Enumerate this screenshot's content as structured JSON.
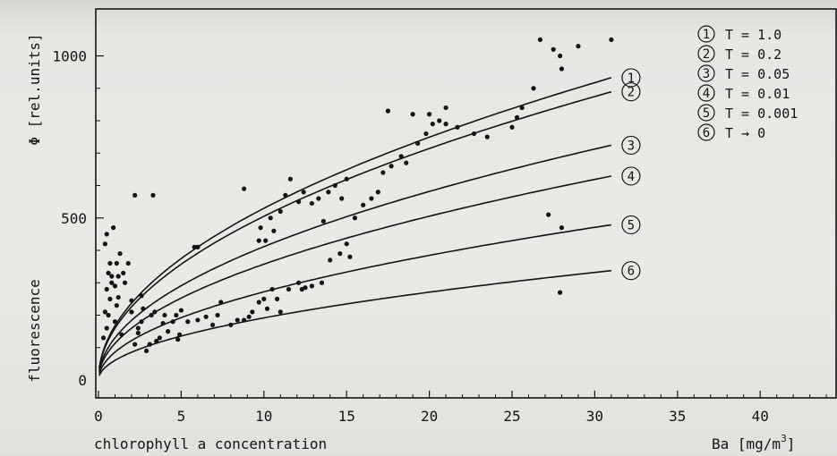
{
  "chart_data": {
    "type": "scatter",
    "title": "",
    "ylabel": "fluorescence",
    "ylabel_quantity": "Φ [rel.units]",
    "xlabel": "chlorophyll  a  concentration",
    "xlabel_unit": "Ba  [mg/m",
    "xlabel_unit_exp": "3",
    "xlabel_unit_close": "]",
    "xlim": [
      0,
      44
    ],
    "ylim": [
      0,
      1080
    ],
    "x_ticks": [
      0,
      5,
      10,
      15,
      20,
      25,
      30,
      35,
      40
    ],
    "y_ticks": [
      0,
      500,
      1000
    ],
    "grid": false,
    "legend_position": "top-right",
    "legend": [
      {
        "num": "1",
        "label": "T = 1.0"
      },
      {
        "num": "2",
        "label": "T = 0.2"
      },
      {
        "num": "3",
        "label": "T = 0.05"
      },
      {
        "num": "4",
        "label": "T = 0.01"
      },
      {
        "num": "5",
        "label": "T = 0.001"
      },
      {
        "num": "6",
        "label": "T → 0"
      }
    ],
    "curves": [
      {
        "num": "1",
        "label": "T = 1.0",
        "coef": 167.5
      },
      {
        "num": "2",
        "label": "T = 0.2",
        "coef": 159.7
      },
      {
        "num": "3",
        "label": "T = 0.05",
        "coef": 130.1
      },
      {
        "num": "4",
        "label": "T = 0.01",
        "coef": 113.0
      },
      {
        "num": "5",
        "label": "T = 0.001",
        "coef": 86.0
      },
      {
        "num": "6",
        "label": "T → 0",
        "coef": 60.6
      }
    ],
    "curve_exponent": 0.5,
    "curve_x_range": [
      0.05,
      31
    ],
    "points": [
      [
        0.3,
        130
      ],
      [
        0.5,
        160
      ],
      [
        0.6,
        200
      ],
      [
        0.4,
        210
      ],
      [
        0.7,
        250
      ],
      [
        0.5,
        280
      ],
      [
        0.8,
        300
      ],
      [
        0.6,
        330
      ],
      [
        0.4,
        420
      ],
      [
        0.5,
        450
      ],
      [
        0.9,
        470
      ],
      [
        0.7,
        360
      ],
      [
        0.8,
        320
      ],
      [
        1.0,
        180
      ],
      [
        1.1,
        230
      ],
      [
        1.2,
        255
      ],
      [
        1.0,
        290
      ],
      [
        1.2,
        320
      ],
      [
        1.1,
        360
      ],
      [
        1.3,
        390
      ],
      [
        1.5,
        330
      ],
      [
        1.6,
        300
      ],
      [
        1.4,
        140
      ],
      [
        1.8,
        360
      ],
      [
        2.0,
        245
      ],
      [
        2.2,
        110
      ],
      [
        2.4,
        145
      ],
      [
        2.4,
        160
      ],
      [
        2.6,
        180
      ],
      [
        2.6,
        260
      ],
      [
        2.7,
        220
      ],
      [
        2.9,
        90
      ],
      [
        3.1,
        110
      ],
      [
        3.2,
        200
      ],
      [
        3.4,
        210
      ],
      [
        3.5,
        120
      ],
      [
        3.7,
        130
      ],
      [
        3.9,
        175
      ],
      [
        4.0,
        200
      ],
      [
        4.2,
        150
      ],
      [
        4.5,
        180
      ],
      [
        4.7,
        200
      ],
      [
        4.8,
        125
      ],
      [
        4.9,
        140
      ],
      [
        5.0,
        215
      ],
      [
        5.4,
        180
      ],
      [
        5.8,
        410
      ],
      [
        6.0,
        185
      ],
      [
        6.5,
        195
      ],
      [
        6.9,
        170
      ],
      [
        7.2,
        200
      ],
      [
        7.4,
        240
      ],
      [
        8.0,
        170
      ],
      [
        8.4,
        185
      ],
      [
        8.8,
        185
      ],
      [
        9.1,
        195
      ],
      [
        9.3,
        210
      ],
      [
        9.7,
        240
      ],
      [
        10.0,
        250
      ],
      [
        10.2,
        220
      ],
      [
        10.5,
        280
      ],
      [
        10.8,
        250
      ],
      [
        11.0,
        210
      ],
      [
        11.5,
        280
      ],
      [
        12.1,
        300
      ],
      [
        12.3,
        280
      ],
      [
        12.5,
        285
      ],
      [
        12.9,
        290
      ],
      [
        13.5,
        300
      ],
      [
        14.0,
        370
      ],
      [
        14.6,
        390
      ],
      [
        15.2,
        380
      ],
      [
        15.0,
        420
      ],
      [
        8.8,
        590
      ],
      [
        9.7,
        430
      ],
      [
        9.8,
        470
      ],
      [
        10.1,
        430
      ],
      [
        10.4,
        500
      ],
      [
        10.6,
        460
      ],
      [
        11.0,
        520
      ],
      [
        11.3,
        570
      ],
      [
        11.6,
        620
      ],
      [
        12.1,
        550
      ],
      [
        12.4,
        580
      ],
      [
        12.9,
        545
      ],
      [
        13.3,
        560
      ],
      [
        13.6,
        490
      ],
      [
        13.9,
        580
      ],
      [
        14.3,
        600
      ],
      [
        14.7,
        560
      ],
      [
        15.0,
        620
      ],
      [
        15.5,
        500
      ],
      [
        16.0,
        540
      ],
      [
        16.5,
        560
      ],
      [
        16.9,
        580
      ],
      [
        17.2,
        640
      ],
      [
        17.7,
        660
      ],
      [
        18.3,
        690
      ],
      [
        18.6,
        670
      ],
      [
        19.3,
        730
      ],
      [
        19.8,
        760
      ],
      [
        20.2,
        790
      ],
      [
        20.6,
        800
      ],
      [
        21.0,
        790
      ],
      [
        21.7,
        780
      ],
      [
        22.7,
        760
      ],
      [
        23.5,
        750
      ],
      [
        25.0,
        780
      ],
      [
        25.3,
        810
      ],
      [
        25.6,
        840
      ],
      [
        26.3,
        900
      ],
      [
        28.0,
        960
      ],
      [
        27.5,
        1020
      ],
      [
        27.9,
        1000
      ],
      [
        29.0,
        1030
      ],
      [
        31.0,
        1050
      ],
      [
        26.7,
        1050
      ],
      [
        27.2,
        510
      ],
      [
        27.9,
        270
      ],
      [
        28.0,
        470
      ],
      [
        17.5,
        830
      ],
      [
        20.0,
        820
      ],
      [
        19.0,
        820
      ],
      [
        21.0,
        840
      ],
      [
        6.0,
        410
      ],
      [
        3.3,
        570
      ],
      [
        2.2,
        570
      ],
      [
        2.0,
        210
      ]
    ]
  }
}
